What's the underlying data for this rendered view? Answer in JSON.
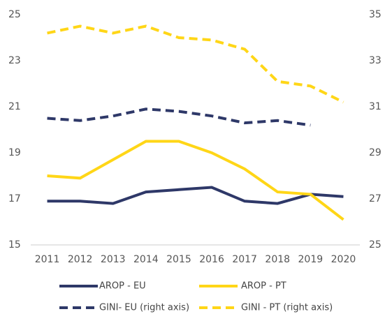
{
  "chart_data": {
    "type": "line",
    "categories": [
      "2011",
      "2012",
      "2013",
      "2014",
      "2015",
      "2016",
      "2017",
      "2018",
      "2019",
      "2020"
    ],
    "series": [
      {
        "name": "AROP - EU",
        "color": "#2e3868",
        "dash": false,
        "values": [
          16.9,
          16.9,
          16.8,
          17.3,
          17.4,
          17.5,
          16.9,
          16.8,
          17.2,
          17.1
        ]
      },
      {
        "name": "AROP - PT",
        "color": "#ffd617",
        "dash": false,
        "values": [
          18.0,
          17.9,
          18.7,
          19.5,
          19.5,
          19.0,
          18.3,
          17.3,
          17.2,
          16.1
        ]
      },
      {
        "name": "GINI- EU (right axis)",
        "color": "#2e3868",
        "dash": true,
        "axis": "y2",
        "values": [
          30.5,
          30.4,
          30.6,
          30.9,
          30.8,
          30.6,
          30.3,
          30.4,
          30.2,
          null
        ]
      },
      {
        "name": "GINI - PT (right axis)",
        "color": "#ffd617",
        "dash": true,
        "axis": "y2",
        "values": [
          34.2,
          34.5,
          34.2,
          34.5,
          34.0,
          33.9,
          33.5,
          32.1,
          31.9,
          31.2
        ]
      }
    ],
    "ylim": [
      15,
      25
    ],
    "yticks": [
      15,
      17,
      19,
      21,
      23,
      25
    ],
    "y2lim": [
      25,
      35
    ],
    "y2ticks": [
      25,
      27,
      29,
      31,
      33,
      35
    ],
    "legend": "bottom",
    "grid": false
  }
}
